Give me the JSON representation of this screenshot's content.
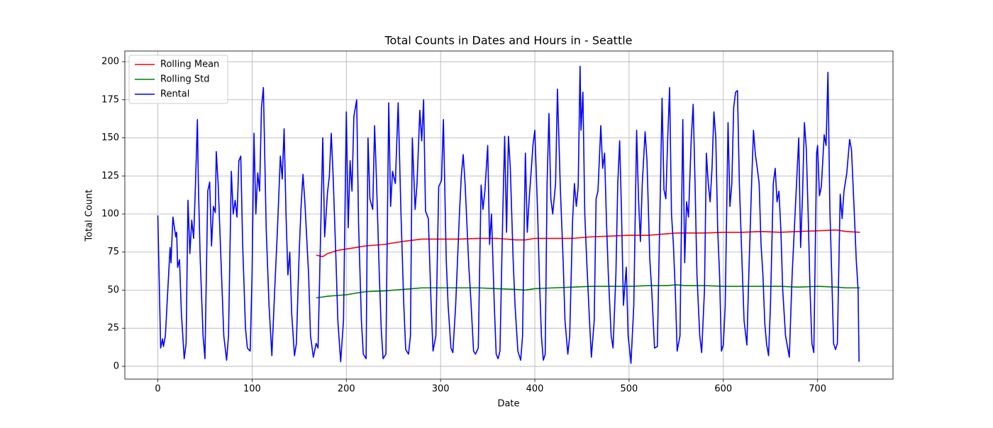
{
  "chart_data": {
    "type": "line",
    "title": "Total Counts in Dates and Hours in - Seattle",
    "xlabel": "Date",
    "ylabel": "Total Count",
    "xlim": [
      -35,
      780
    ],
    "ylim": [
      -8.4,
      207
    ],
    "xticks": [
      0,
      100,
      200,
      300,
      400,
      500,
      600,
      700
    ],
    "yticks": [
      0,
      25,
      50,
      75,
      100,
      125,
      150,
      175,
      200
    ],
    "grid": true,
    "legend": "upper left",
    "series": [
      {
        "name": "Rolling Mean",
        "color": "#ff0000",
        "x": [
          168,
          175,
          180,
          190,
          200,
          210,
          220,
          240,
          260,
          280,
          300,
          320,
          340,
          360,
          380,
          390,
          400,
          420,
          440,
          460,
          480,
          500,
          520,
          540,
          550,
          560,
          580,
          600,
          620,
          640,
          660,
          680,
          700,
          720,
          730,
          745
        ],
        "values": [
          73,
          72,
          74,
          76,
          77,
          78,
          79,
          80,
          82,
          83.5,
          83.5,
          83.5,
          84,
          84,
          83,
          83,
          84,
          84,
          84,
          85,
          85.5,
          86,
          86,
          87,
          87.5,
          87.5,
          87.5,
          88,
          88,
          88.5,
          88,
          88.5,
          89,
          89.5,
          88.5,
          88
        ]
      },
      {
        "name": "Rolling Std",
        "color": "#008000",
        "x": [
          168,
          175,
          180,
          190,
          200,
          210,
          220,
          240,
          260,
          280,
          300,
          320,
          340,
          360,
          380,
          390,
          400,
          420,
          440,
          460,
          480,
          500,
          520,
          540,
          550,
          560,
          580,
          600,
          620,
          640,
          660,
          680,
          700,
          720,
          730,
          745
        ],
        "values": [
          45,
          45.5,
          46,
          46.5,
          47,
          48,
          49,
          49.5,
          50.5,
          51.5,
          51.5,
          51.5,
          51.5,
          51,
          50.5,
          50,
          51,
          51.5,
          52,
          52.5,
          52.5,
          52.5,
          53,
          53,
          53.5,
          53,
          53,
          52.5,
          52.5,
          52.5,
          52.5,
          52,
          52.5,
          52,
          51.5,
          51.5
        ]
      },
      {
        "name": "Rental",
        "color": "#0000ff",
        "x": [
          0,
          3,
          5,
          6,
          8,
          13,
          14,
          16,
          19,
          20,
          21,
          23,
          25,
          28,
          30,
          32,
          34,
          36,
          38,
          40,
          42,
          43,
          45,
          48,
          50,
          53,
          55,
          57,
          59,
          61,
          62,
          64,
          67,
          70,
          73,
          75,
          78,
          80,
          82,
          84,
          86,
          88,
          90,
          91,
          93,
          95,
          98,
          100,
          102,
          104,
          106,
          108,
          110,
          112,
          115,
          118,
          121,
          124,
          127,
          130,
          132,
          134,
          136,
          138,
          140,
          142,
          145,
          147,
          150,
          152,
          154,
          156,
          160,
          162,
          165,
          168,
          170,
          175,
          177,
          180,
          182,
          184,
          186,
          189,
          191,
          194,
          197,
          200,
          202,
          204,
          206,
          208,
          211,
          213,
          216,
          218,
          221,
          223,
          225,
          228,
          230,
          232,
          235,
          237,
          239,
          242,
          245,
          247,
          249,
          252,
          255,
          258,
          261,
          263,
          266,
          268,
          270,
          273,
          275,
          278,
          280,
          282,
          284,
          287,
          290,
          292,
          295,
          298,
          301,
          303,
          306,
          308,
          311,
          313,
          316,
          320,
          322,
          324,
          326,
          330,
          332,
          335,
          337,
          340,
          343,
          345,
          347,
          350,
          352,
          354,
          357,
          359,
          361,
          363,
          366,
          368,
          370,
          372,
          374,
          377,
          379,
          382,
          385,
          387,
          389,
          390,
          392,
          394,
          396,
          398,
          400,
          403,
          405,
          407,
          409,
          411,
          413,
          415,
          417,
          419,
          422,
          424,
          427,
          430,
          432,
          435,
          437,
          440,
          442,
          444,
          446,
          448,
          449,
          451,
          453,
          455,
          458,
          460,
          463,
          465,
          467,
          470,
          472,
          474,
          476,
          478,
          481,
          483,
          486,
          488,
          490,
          492,
          494,
          497,
          499,
          502,
          505,
          508,
          510,
          512,
          514,
          517,
          519,
          522,
          524,
          527,
          530,
          533,
          535,
          537,
          539,
          541,
          543,
          545,
          547,
          549,
          551,
          554,
          557,
          559,
          561,
          563,
          566,
          568,
          570,
          572,
          575,
          577,
          580,
          582,
          584,
          586,
          588,
          590,
          592,
          594,
          596,
          598,
          600,
          602,
          605,
          607,
          609,
          611,
          613,
          615,
          617,
          620,
          622,
          625,
          627,
          630,
          632,
          634,
          636,
          638,
          640,
          642,
          644,
          646,
          648,
          650,
          653,
          655,
          657,
          659,
          661,
          663,
          666,
          670,
          673,
          680,
          682,
          684,
          686,
          688,
          690,
          692,
          694,
          696,
          699,
          700,
          702,
          704,
          707,
          709,
          711,
          713,
          715,
          717,
          719,
          721,
          724,
          726,
          728,
          731,
          734,
          736,
          739,
          741,
          743,
          744
        ],
        "values": [
          99,
          12,
          18,
          13,
          20,
          78,
          68,
          98,
          85,
          88,
          65,
          70,
          35,
          5,
          15,
          109,
          74,
          96,
          84,
          120,
          162,
          120,
          70,
          20,
          5,
          115,
          121,
          79,
          105,
          101,
          141,
          120,
          70,
          20,
          4,
          20,
          128,
          100,
          109,
          98,
          135,
          138,
          80,
          62,
          25,
          12,
          10,
          60,
          153,
          100,
          127,
          115,
          170,
          183,
          90,
          40,
          7,
          50,
          91,
          138,
          123,
          156,
          100,
          60,
          75,
          35,
          7,
          15,
          75,
          105,
          126,
          108,
          60,
          20,
          6,
          15,
          12,
          150,
          85,
          114,
          125,
          153,
          125,
          70,
          30,
          3,
          30,
          167,
          91,
          135,
          115,
          164,
          175,
          93,
          30,
          8,
          5,
          150,
          110,
          103,
          158,
          122,
          60,
          25,
          5,
          8,
          173,
          105,
          128,
          120,
          173,
          100,
          40,
          11,
          8,
          20,
          150,
          103,
          120,
          168,
          148,
          175,
          102,
          97,
          40,
          10,
          20,
          118,
          122,
          162,
          70,
          40,
          12,
          9,
          40,
          100,
          125,
          139,
          120,
          65,
          45,
          10,
          8,
          12,
          119,
          103,
          115,
          145,
          80,
          100,
          40,
          8,
          5,
          10,
          100,
          151,
          88,
          151,
          130,
          70,
          40,
          10,
          4,
          20,
          105,
          140,
          88,
          110,
          127,
          145,
          155,
          100,
          55,
          20,
          4,
          8,
          120,
          166,
          110,
          100,
          120,
          182,
          118,
          70,
          30,
          8,
          20,
          95,
          120,
          105,
          118,
          197,
          155,
          180,
          100,
          70,
          30,
          6,
          30,
          110,
          115,
          158,
          130,
          140,
          95,
          60,
          20,
          12,
          60,
          120,
          148,
          100,
          40,
          65,
          20,
          2,
          40,
          155,
          110,
          82,
          120,
          154,
          135,
          70,
          50,
          12,
          13,
          110,
          176,
          116,
          110,
          150,
          183,
          100,
          80,
          50,
          10,
          20,
          162,
          68,
          108,
          98,
          150,
          172,
          120,
          60,
          20,
          9,
          50,
          140,
          120,
          108,
          130,
          167,
          150,
          90,
          60,
          10,
          14,
          40,
          160,
          105,
          120,
          170,
          180,
          181,
          120,
          65,
          30,
          14,
          60,
          120,
          155,
          139,
          130,
          120,
          80,
          60,
          28,
          14,
          7,
          40,
          120,
          130,
          108,
          115,
          90,
          50,
          20,
          6,
          60,
          150,
          78,
          112,
          160,
          143,
          100,
          50,
          15,
          9,
          140,
          145,
          112,
          118,
          152,
          145,
          193,
          104,
          60,
          15,
          11,
          15,
          113,
          97,
          115,
          127,
          149,
          142,
          100,
          70,
          50,
          3
        ]
      }
    ]
  }
}
